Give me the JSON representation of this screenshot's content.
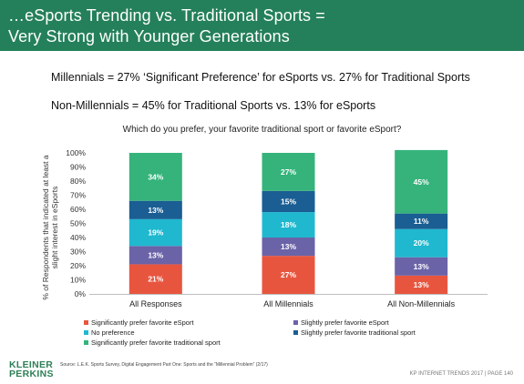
{
  "header": {
    "line1": "…eSports Trending vs. Traditional Sports =",
    "line2": "Very Strong with Younger Generations",
    "bg_color": "#24805a"
  },
  "statements": {
    "line1": "Millennials = 27% ‘Significant Preference’ for eSports vs. 27% for Traditional Sports",
    "line2": "Non-Millennials = 45% for Traditional Sports vs. 13% for eSports"
  },
  "chart_data": {
    "type": "bar",
    "stacked": true,
    "title": "Which do you prefer, your favorite traditional sport or favorite eSport?",
    "ylabel": "% of Respondents that indicated at least a slight interest in eSports",
    "xlabel": "",
    "ylim": [
      0,
      100
    ],
    "yticks": [
      "0%",
      "10%",
      "20%",
      "30%",
      "40%",
      "50%",
      "60%",
      "70%",
      "80%",
      "90%",
      "100%"
    ],
    "categories": [
      "All Responses",
      "All Millennials",
      "All Non-Millennials"
    ],
    "series": [
      {
        "name": "Significantly prefer favorite eSport",
        "color": "#e8553f",
        "values": [
          21,
          27,
          13
        ]
      },
      {
        "name": "Slightly prefer favorite eSport",
        "color": "#6b63a8",
        "values": [
          13,
          13,
          13
        ]
      },
      {
        "name": "No preference",
        "color": "#1fb8cf",
        "values": [
          19,
          18,
          20
        ]
      },
      {
        "name": "Slightly prefer favorite traditional sport",
        "color": "#1a5e93",
        "values": [
          13,
          15,
          11
        ]
      },
      {
        "name": "Significantly prefer favorite traditional sport",
        "color": "#35b37b",
        "values": [
          34,
          27,
          45
        ]
      }
    ],
    "data_labels": [
      [
        "21%",
        "13%",
        "19%",
        "13%",
        "34%"
      ],
      [
        "27%",
        "13%",
        "18%",
        "15%",
        "27%"
      ],
      [
        "13%",
        "13%",
        "20%",
        "11%",
        "45%"
      ]
    ],
    "legend": {
      "position": "bottom",
      "items": [
        {
          "label": "Significantly prefer favorite eSport",
          "color": "#e8553f"
        },
        {
          "label": "Slightly prefer favorite eSport",
          "color": "#6b63a8"
        },
        {
          "label": "No preference",
          "color": "#1fb8cf"
        },
        {
          "label": "Slightly prefer favorite traditional sport",
          "color": "#1a5e93"
        },
        {
          "label": "Significantly prefer favorite traditional sport",
          "color": "#35b37b"
        }
      ]
    },
    "grid": false
  },
  "footer": {
    "logo_line1": "KLEINER",
    "logo_line2": "PERKINS",
    "source": "Source: L.E.K. Sports Survey, Digital Engagement Part One: Sports and the “Millennial Problem” (2/17)",
    "page": "KP INTERNET TRENDS 2017 | PAGE 140"
  }
}
